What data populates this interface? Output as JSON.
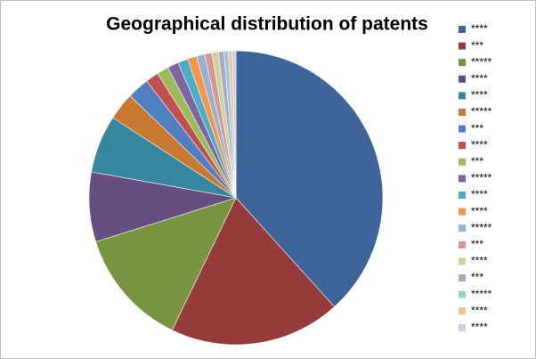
{
  "chart_data": {
    "type": "pie",
    "title": "Geographical distribution of patents",
    "categories": [
      "****",
      "***",
      "*****",
      "****",
      "****",
      "*****",
      "***",
      "****",
      "***",
      "*****",
      "****",
      "****",
      "*****",
      "***",
      "****",
      "***",
      "*****",
      "****",
      "****"
    ],
    "values": [
      38,
      18.7,
      12.9,
      7.6,
      6.3,
      3,
      2.4,
      1.4,
      1.3,
      1.2,
      1.1,
      1,
      0.9,
      0.8,
      0.7,
      0.6,
      0.5,
      0.4,
      0.4
    ],
    "colors": [
      "#3e6499",
      "#953b39",
      "#779440",
      "#644e82",
      "#36879e",
      "#c97a32",
      "#4f7fc0",
      "#c0504d",
      "#9bbb59",
      "#8064a2",
      "#4bacc6",
      "#f79646",
      "#95b3d7",
      "#d99694",
      "#c3d69b",
      "#b3a2c7",
      "#93cddd",
      "#fac08f",
      "#c6d0e0"
    ],
    "legend": "right"
  }
}
